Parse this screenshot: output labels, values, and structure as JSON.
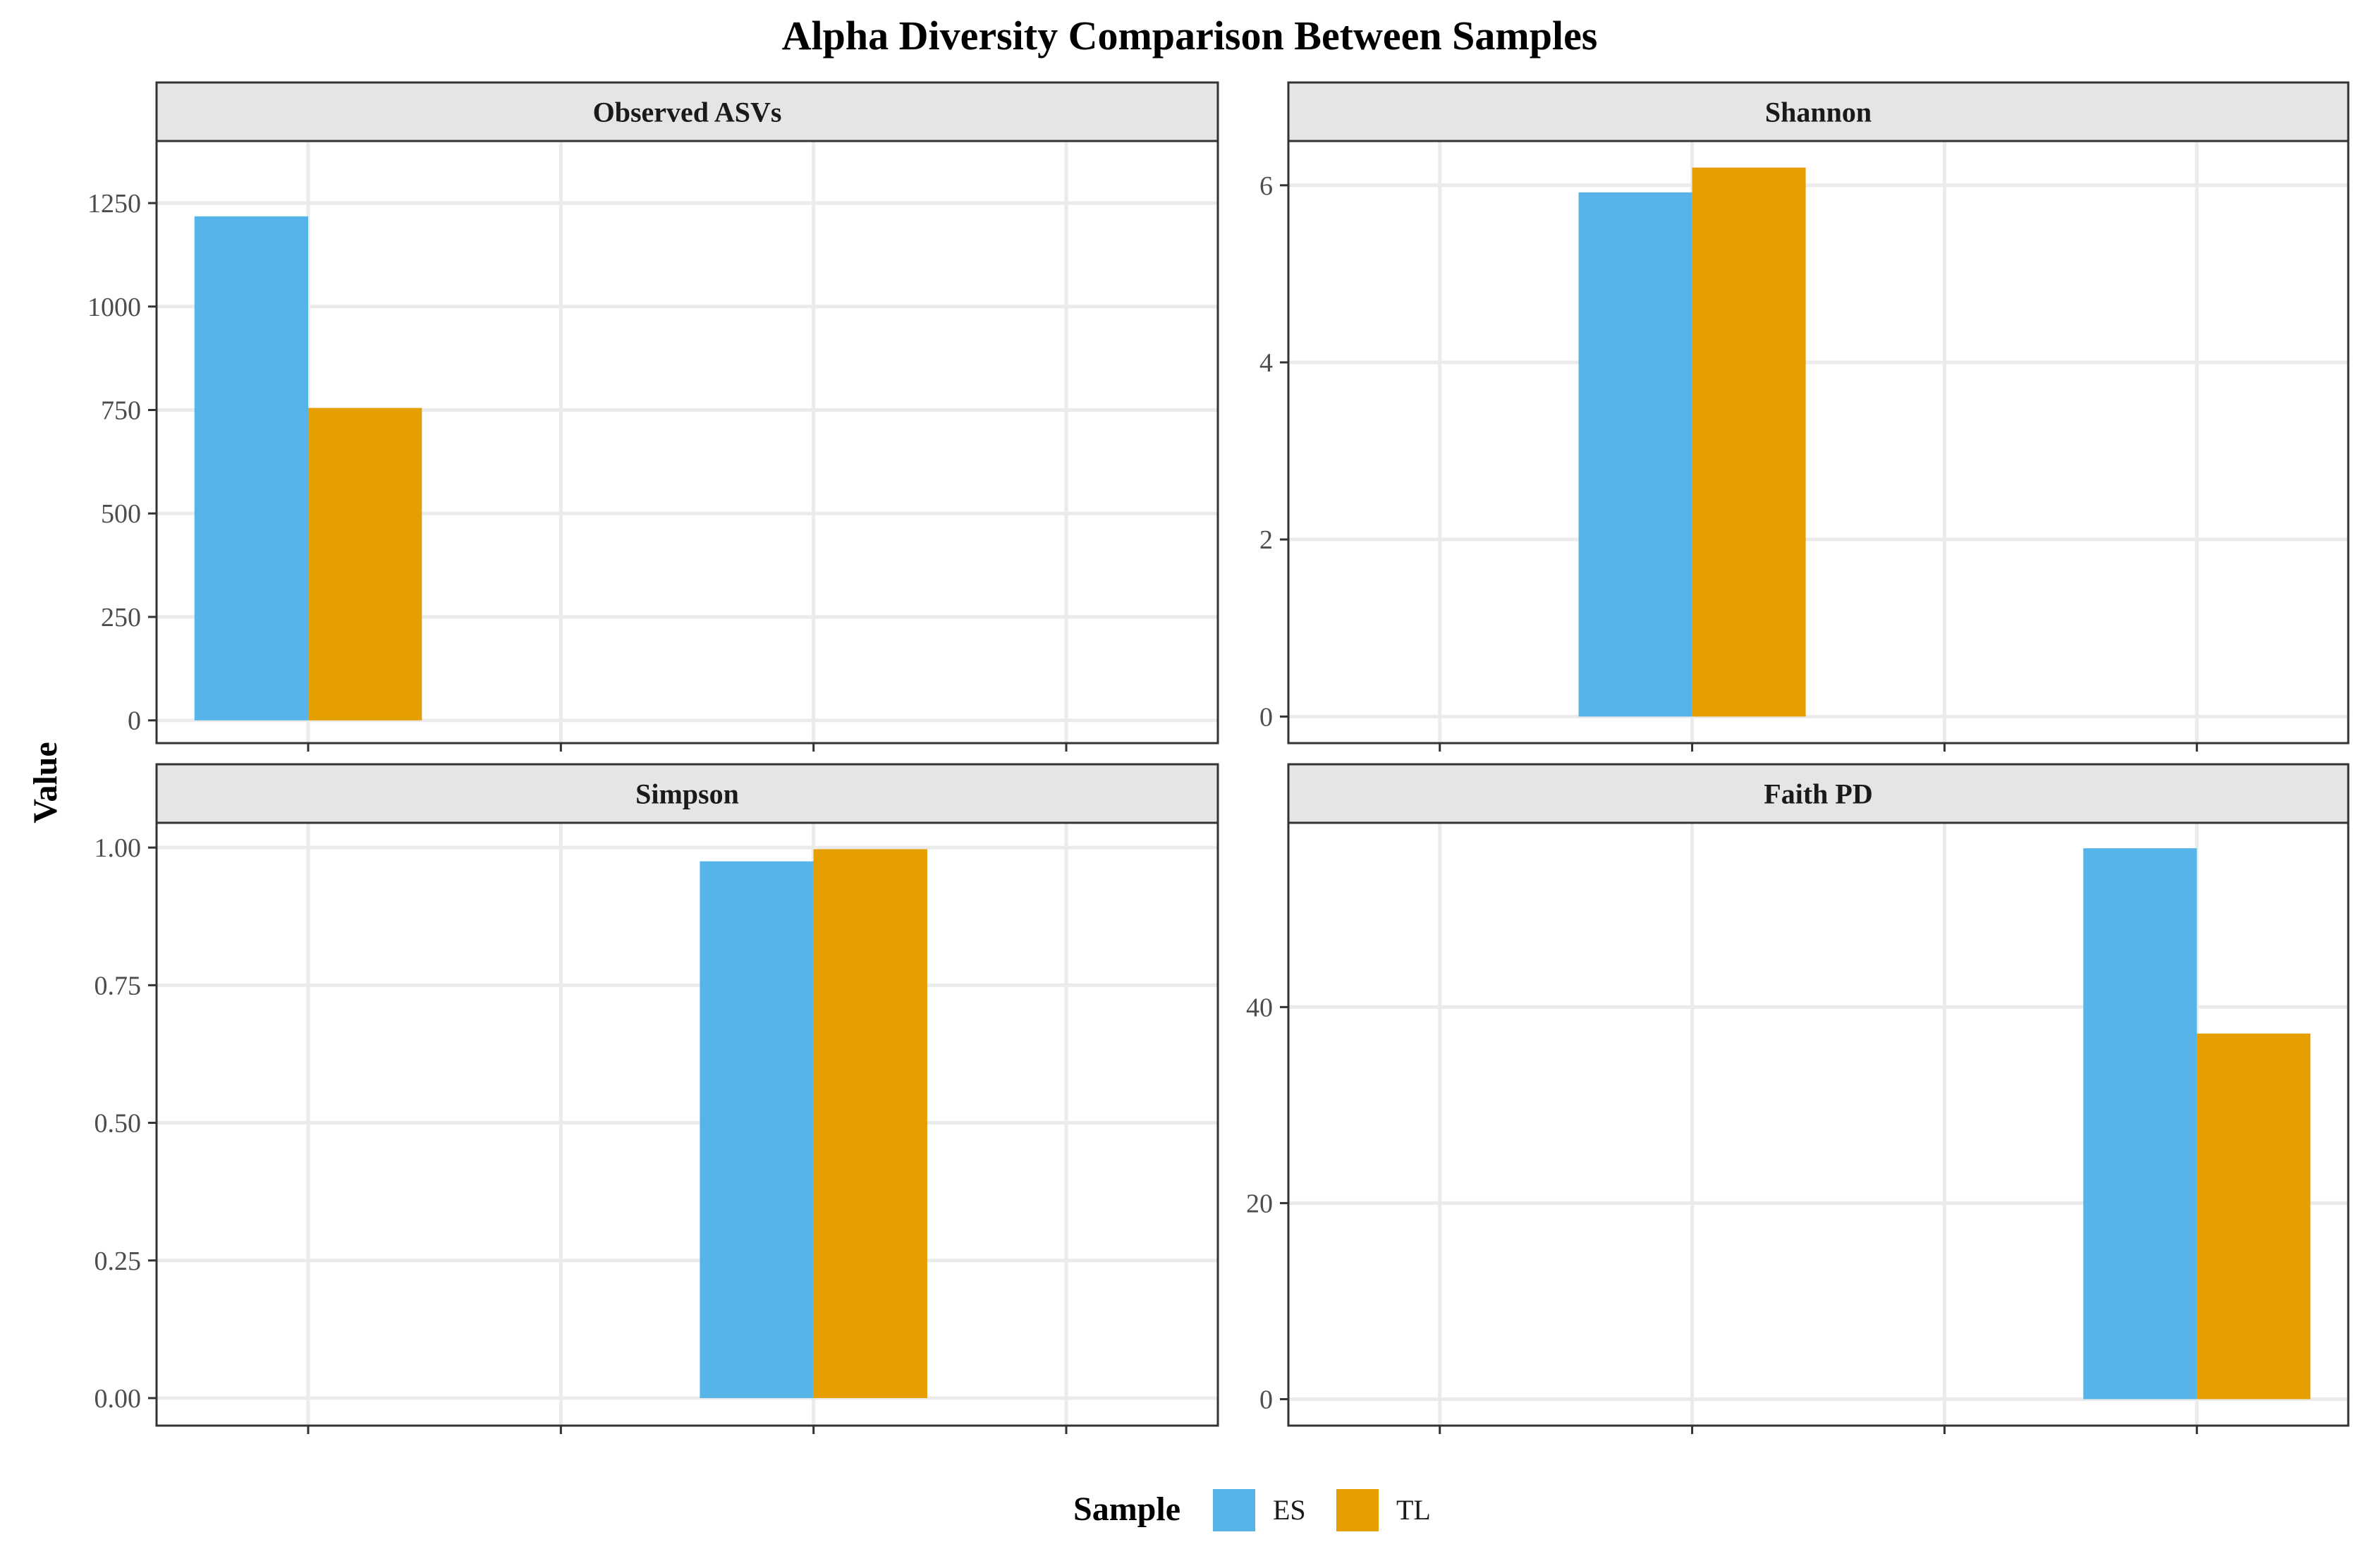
{
  "chart_data": {
    "type": "bar",
    "title": "Alpha Diversity Comparison Between Samples",
    "ylabel": "Value",
    "xlabel": "",
    "legend": {
      "title": "Sample",
      "position": "bottom",
      "entries": [
        {
          "name": "ES",
          "color": "#56B4E9"
        },
        {
          "name": "TL",
          "color": "#E69F00"
        }
      ]
    },
    "panels": [
      {
        "name": "Observed ASVs",
        "x_slot": 1,
        "ylim": [
          -55,
          1400
        ],
        "yticks": [
          0,
          250,
          500,
          750,
          1000,
          1250
        ],
        "ytick_labels": [
          "0",
          "250",
          "500",
          "750",
          "1000",
          "1250"
        ],
        "series": [
          {
            "name": "ES",
            "value": 1218
          },
          {
            "name": "TL",
            "value": 755
          }
        ]
      },
      {
        "name": "Shannon",
        "x_slot": 2,
        "ylim": [
          -0.3,
          6.5
        ],
        "yticks": [
          0,
          2,
          4,
          6
        ],
        "ytick_labels": [
          "0",
          "2",
          "4",
          "6"
        ],
        "series": [
          {
            "name": "ES",
            "value": 5.92
          },
          {
            "name": "TL",
            "value": 6.2
          }
        ]
      },
      {
        "name": "Simpson",
        "x_slot": 3,
        "ylim": [
          -0.05,
          1.045
        ],
        "yticks": [
          0,
          0.25,
          0.5,
          0.75,
          1.0
        ],
        "ytick_labels": [
          "0.00",
          "0.25",
          "0.50",
          "0.75",
          "1.00"
        ],
        "series": [
          {
            "name": "ES",
            "value": 0.975
          },
          {
            "name": "TL",
            "value": 0.997
          }
        ]
      },
      {
        "name": "Faith PD",
        "x_slot": 4,
        "ylim": [
          -2.7,
          58.8
        ],
        "yticks": [
          0,
          20,
          40
        ],
        "ytick_labels": [
          "0",
          "20",
          "40"
        ],
        "series": [
          {
            "name": "ES",
            "value": 56.2
          },
          {
            "name": "TL",
            "value": 37.3
          }
        ]
      }
    ]
  }
}
